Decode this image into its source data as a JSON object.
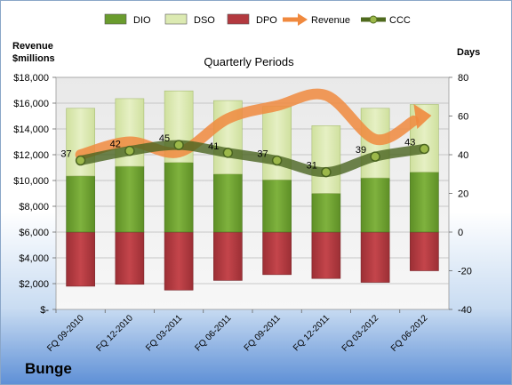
{
  "company": "Bunge",
  "chart_data": {
    "type": "bar",
    "title": "Quarterly Periods",
    "left_axis_label": [
      "Revenue",
      "$millions"
    ],
    "right_axis_label": "Days",
    "categories": [
      "FQ 09-2010",
      "FQ 12-2010",
      "FQ 03-2011",
      "FQ 06-2011",
      "FQ 09-2011",
      "FQ 12-2011",
      "FQ 03-2012",
      "FQ 06-2012"
    ],
    "legend": [
      {
        "name": "DIO",
        "kind": "box",
        "color": "#6a9c2e"
      },
      {
        "name": "DSO",
        "kind": "box",
        "color": "#dceab2"
      },
      {
        "name": "DPO",
        "kind": "box",
        "color": "#b3393f"
      },
      {
        "name": "Revenue",
        "kind": "arrow",
        "color": "#f0893e"
      },
      {
        "name": "CCC",
        "kind": "line-marker",
        "color": "#4f6a1e"
      }
    ],
    "left_axis": {
      "min": 0,
      "max": 18000,
      "step": 2000,
      "tick_labels": [
        "$-",
        "$2,000",
        "$4,000",
        "$6,000",
        "$8,000",
        "$10,000",
        "$12,000",
        "$14,000",
        "$16,000",
        "$18,000"
      ]
    },
    "right_axis": {
      "min": -40,
      "max": 80,
      "step": 20,
      "tick_labels": [
        "-40",
        "-20",
        "0",
        "20",
        "40",
        "60",
        "80"
      ]
    },
    "series": [
      {
        "name": "DIO",
        "axis": "days",
        "values": [
          29,
          34,
          36,
          30,
          27,
          20,
          28,
          31
        ]
      },
      {
        "name": "DSO",
        "axis": "days",
        "values": [
          35,
          35,
          37,
          38,
          38,
          35,
          36,
          35
        ]
      },
      {
        "name": "DPO",
        "axis": "days",
        "values": [
          -28,
          -27,
          -30,
          -25,
          -22,
          -24,
          -26,
          -20
        ]
      },
      {
        "name": "Revenue",
        "axis": "revenue",
        "values": [
          12000,
          13000,
          12200,
          14800,
          15800,
          16600,
          13200,
          14900
        ]
      },
      {
        "name": "CCC",
        "axis": "days",
        "values": [
          37,
          42,
          45,
          41,
          37,
          31,
          39,
          43
        ]
      }
    ],
    "ccc_labels": [
      "37",
      "42",
      "45",
      "41",
      "37",
      "31",
      "39",
      "43"
    ],
    "grid": true
  }
}
